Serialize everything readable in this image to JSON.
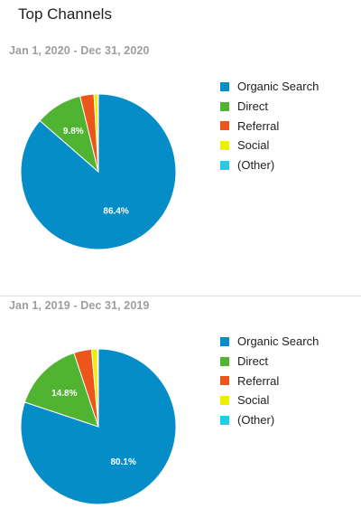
{
  "card": {
    "title": "Top Channels"
  },
  "colors": {
    "Organic Search": "#058dc7",
    "Direct": "#50b432",
    "Referral": "#ed561b",
    "Social": "#edef00",
    "(Other)": "#24cbe5"
  },
  "chart_data": [
    {
      "type": "pie",
      "title": "Jan 1, 2020 - Dec 31, 2020",
      "legend_position": "right",
      "labels": [
        "Organic Search",
        "Direct",
        "Referral",
        "Social",
        "(Other)"
      ],
      "values": [
        86.4,
        9.8,
        2.9,
        0.8,
        0.1
      ],
      "data_labels": [
        "86.4%",
        "9.8%",
        "",
        "",
        ""
      ]
    },
    {
      "type": "pie",
      "title": "Jan 1, 2019 - Dec 31, 2019",
      "legend_position": "right",
      "labels": [
        "Organic Search",
        "Direct",
        "Referral",
        "Social",
        "(Other)"
      ],
      "values": [
        80.1,
        14.8,
        3.7,
        1.2,
        0.2
      ],
      "data_labels": [
        "80.1%",
        "14.8%",
        "",
        "",
        ""
      ]
    }
  ]
}
